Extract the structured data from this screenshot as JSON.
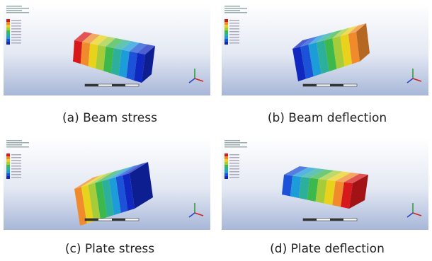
{
  "panels": [
    {
      "caption": "(a) Beam stress"
    },
    {
      "caption": "(b) Beam deflection"
    },
    {
      "caption": "(c) Plate stress"
    },
    {
      "caption": "(d) Plate deflection"
    }
  ]
}
